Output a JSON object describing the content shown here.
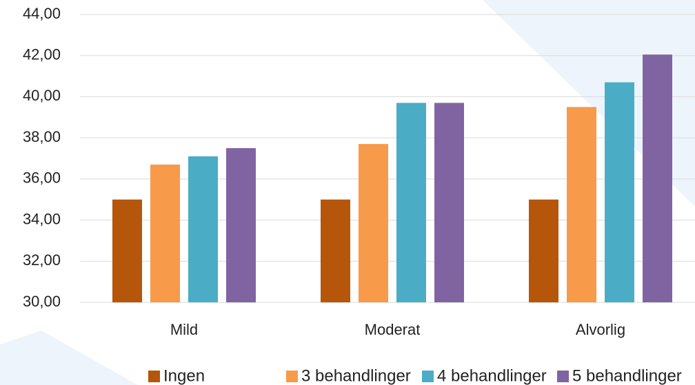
{
  "chart_data": {
    "type": "bar",
    "categories": [
      "Mild",
      "Moderat",
      "Alvorlig"
    ],
    "series": [
      {
        "name": "Ingen",
        "color": "#b5560b",
        "values": [
          35,
          35,
          35
        ]
      },
      {
        "name": "3 behandlinger",
        "color": "#f79a4a",
        "values": [
          36.7,
          37.7,
          39.5
        ]
      },
      {
        "name": "4 behandlinger",
        "color": "#4bacc6",
        "values": [
          37.1,
          39.7,
          40.7
        ]
      },
      {
        "name": "5 behandlinger",
        "color": "#8064a2",
        "values": [
          37.5,
          39.7,
          42.05
        ]
      }
    ],
    "ylim": [
      30,
      44
    ],
    "yticks": [
      {
        "value": 30,
        "label": "30,00"
      },
      {
        "value": 32,
        "label": "32,00"
      },
      {
        "value": 34,
        "label": "34,00"
      },
      {
        "value": 36,
        "label": "36,00"
      },
      {
        "value": 38,
        "label": "38,00"
      },
      {
        "value": 40,
        "label": "40,00"
      },
      {
        "value": 42,
        "label": "42,00"
      },
      {
        "value": 44,
        "label": "44,00"
      }
    ],
    "grid": true,
    "legend": "bottom"
  }
}
